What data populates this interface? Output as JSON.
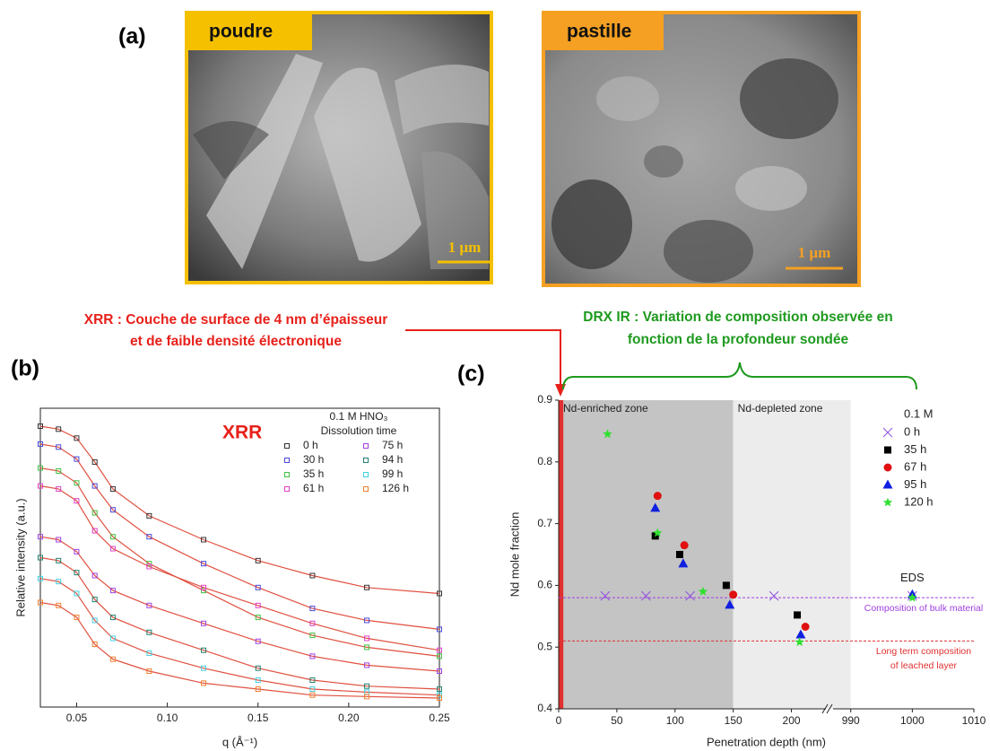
{
  "panel_labels": [
    "(a)",
    "(b)",
    "(c)"
  ],
  "images": [
    {
      "label": "poudre",
      "scale_bar": "1 µm",
      "frame_color": "#f5c000"
    },
    {
      "label": "pastille",
      "scale_bar": "1 µm",
      "frame_color": "#f5a023"
    }
  ],
  "annotations": {
    "xrr_note": [
      "XRR : Couche de surface de 4 nm d’épaisseur",
      "et de faible densité électronique"
    ],
    "drx_note": [
      "DRX IR : Variation de composition observée en",
      "fonction de la profondeur sondée"
    ]
  },
  "chart_data": [
    {
      "type": "line",
      "title": "XRR",
      "x_label": "q (Å⁻¹)",
      "y_label": "Relative intensity (a.u.)",
      "legend_title": [
        "0.1 M HNO₃",
        "Dissolution time"
      ],
      "x": [
        0.03,
        0.04,
        0.05,
        0.06,
        0.07,
        0.09,
        0.12,
        0.15,
        0.18,
        0.21,
        0.25
      ],
      "xlim": [
        0.03,
        0.25
      ],
      "xticks": [
        0.05,
        {
          "value": 0.1,
          "label": "0.10"
        },
        0.15,
        {
          "value": 0.2,
          "label": "0.20"
        },
        0.25
      ],
      "ylim": [
        0,
        10
      ],
      "fit_color": "#e05040",
      "series": [
        {
          "name": "0 h",
          "color": "#333333",
          "values": [
            9.4,
            9.3,
            9.0,
            8.2,
            7.3,
            6.4,
            5.6,
            4.9,
            4.4,
            4.0,
            3.8
          ]
        },
        {
          "name": "30 h",
          "color": "#4848d8",
          "values": [
            8.8,
            8.7,
            8.3,
            7.4,
            6.6,
            5.7,
            4.8,
            4.0,
            3.3,
            2.9,
            2.6
          ]
        },
        {
          "name": "35 h",
          "color": "#40c040",
          "values": [
            8.0,
            7.9,
            7.5,
            6.5,
            5.7,
            4.8,
            3.9,
            3.0,
            2.4,
            2.0,
            1.7
          ]
        },
        {
          "name": "61 h",
          "color": "#e040c8",
          "values": [
            7.4,
            7.3,
            6.9,
            5.9,
            5.3,
            4.7,
            4.0,
            3.4,
            2.8,
            2.3,
            1.9
          ]
        },
        {
          "name": "75 h",
          "color": "#a040e0",
          "values": [
            5.7,
            5.6,
            5.2,
            4.4,
            3.9,
            3.4,
            2.8,
            2.2,
            1.7,
            1.4,
            1.2
          ]
        },
        {
          "name": "94 h",
          "color": "#208070",
          "values": [
            5.0,
            4.9,
            4.5,
            3.6,
            3.0,
            2.5,
            1.9,
            1.3,
            0.9,
            0.7,
            0.6
          ]
        },
        {
          "name": "99 h",
          "color": "#40d0e0",
          "values": [
            4.3,
            4.2,
            3.8,
            2.9,
            2.3,
            1.8,
            1.3,
            0.9,
            0.6,
            0.5,
            0.4
          ]
        },
        {
          "name": "126 h",
          "color": "#f08030",
          "values": [
            3.5,
            3.4,
            3.0,
            2.1,
            1.6,
            1.2,
            0.8,
            0.6,
            0.4,
            0.35,
            0.3
          ]
        }
      ]
    },
    {
      "type": "scatter",
      "x_label": "Penetration depth (nm)",
      "y_label": "Nd mole fraction",
      "legend_title": "0.1 M",
      "xlim": [
        0,
        1010
      ],
      "x_break": [
        225,
        988
      ],
      "xticks": [
        0,
        50,
        100,
        150,
        200,
        990,
        1000,
        1010
      ],
      "ylim": [
        0.4,
        0.9
      ],
      "yticks": [
        0.4,
        0.5,
        0.6,
        0.7,
        0.8,
        0.9
      ],
      "surface_layer": [
        0,
        4
      ],
      "zones": [
        {
          "label": "Nd-enriched zone",
          "from": 0,
          "to": 150,
          "color": "#c4c4c4"
        },
        {
          "label": "Nd-depleted zone",
          "from": 150,
          "to": 990,
          "color": "#ececec"
        }
      ],
      "reference_lines": [
        {
          "value": 0.58,
          "color": "#a040e0",
          "label": [
            "Composition of bulk material"
          ]
        },
        {
          "value": 0.51,
          "color": "#e03030",
          "label": [
            "Long term composition",
            "of leached layer"
          ]
        }
      ],
      "point_label": {
        "text": "EDS",
        "x": 1000,
        "y": 0.585
      },
      "series": [
        {
          "name": "0 h",
          "marker": "x",
          "color": "#9050e0",
          "x": [
            40,
            75,
            113,
            185,
            1000
          ],
          "values": [
            0.583,
            0.583,
            0.583,
            0.583,
            0.583
          ]
        },
        {
          "name": "35 h",
          "marker": "square",
          "color": "#000000",
          "x": [
            83,
            104,
            144,
            205
          ],
          "values": [
            0.68,
            0.65,
            0.6,
            0.552
          ]
        },
        {
          "name": "67 h",
          "marker": "circle",
          "color": "#e01010",
          "x": [
            85,
            108,
            150,
            212
          ],
          "values": [
            0.745,
            0.665,
            0.585,
            0.533
          ]
        },
        {
          "name": "95 h",
          "marker": "triangle",
          "color": "#1020e0",
          "x": [
            83,
            107,
            147,
            208,
            1000
          ],
          "values": [
            0.725,
            0.635,
            0.568,
            0.52,
            0.585
          ]
        },
        {
          "name": "120 h",
          "marker": "star",
          "color": "#30e030",
          "x": [
            42,
            85,
            124,
            207,
            1000
          ],
          "values": [
            0.845,
            0.685,
            0.59,
            0.508,
            0.58
          ]
        }
      ]
    }
  ]
}
